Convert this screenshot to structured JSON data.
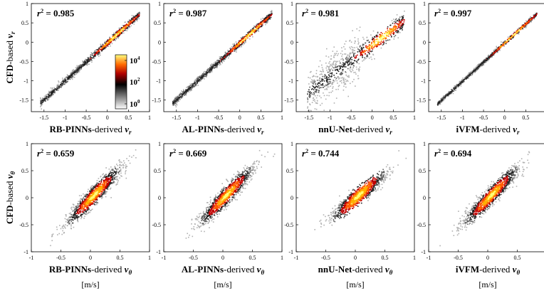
{
  "figure": {
    "colorbar": {
      "ticks": [
        "10^4",
        "10^2",
        "10^0"
      ]
    },
    "rows": [
      {
        "ylabel_bold": "CFD",
        "ylabel_rest": "-based ",
        "ylabel_var": "v",
        "ylabel_sub": "r",
        "xlabel_var": "v",
        "xlabel_sub": "r",
        "x_ticks": [
          "-1.5",
          "-1",
          "-0.5",
          "0",
          "0.5",
          "1"
        ],
        "y_ticks": [
          "1",
          "0.5",
          "0",
          "-0.5",
          "-1",
          "-1.5"
        ],
        "units": ""
      },
      {
        "ylabel_bold": "CFD",
        "ylabel_rest": "-based ",
        "ylabel_var": "v",
        "ylabel_sub": "θ",
        "xlabel_var": "v",
        "xlabel_sub": "θ",
        "x_ticks": [
          "-1",
          "-0.5",
          "0",
          "0.5",
          "1"
        ],
        "y_ticks": [
          "1",
          "0.5",
          "0",
          "-0.5",
          "-1"
        ],
        "units": "[m/s]"
      }
    ],
    "columns": [
      {
        "model_bold": "RB-PINNs",
        "rest": "-derived "
      },
      {
        "model_bold": "AL-PINNs",
        "rest": "-derived "
      },
      {
        "model_bold": "nnU-Net",
        "rest": "-derived "
      },
      {
        "model_bold": "iVFM",
        "rest": "-derived "
      }
    ],
    "r2_prefix": "r",
    "r2_exp": "2"
  },
  "chart_data": [
    {
      "type": "heatmap",
      "row": 1,
      "panel": "RB-PINNs vs CFD (v_r)",
      "r2": "0.985",
      "xlim": [
        -1.8,
        1
      ],
      "ylim": [
        -1.8,
        1
      ],
      "trend": {
        "slope": 0.98,
        "intercept": 0.0,
        "spread": 0.05,
        "x_range": [
          -1.6,
          0.75
        ]
      },
      "colorbar_range": [
        1,
        10000
      ],
      "colorscale": [
        "#ffffff",
        "#000000",
        "#b00000",
        "#ff6a00",
        "#ffff80"
      ]
    },
    {
      "type": "heatmap",
      "row": 1,
      "panel": "AL-PINNs vs CFD (v_r)",
      "r2": "0.987",
      "xlim": [
        -1.8,
        1
      ],
      "ylim": [
        -1.8,
        1
      ],
      "trend": {
        "slope": 0.98,
        "intercept": 0.0,
        "spread": 0.05,
        "x_range": [
          -1.6,
          0.75
        ]
      }
    },
    {
      "type": "heatmap",
      "row": 1,
      "panel": "nnU-Net vs CFD (v_r)",
      "r2": "0.981",
      "xlim": [
        -1.8,
        1
      ],
      "ylim": [
        -1.8,
        1
      ],
      "trend": {
        "slope": 0.82,
        "intercept": -0.05,
        "spread": 0.12,
        "x_range": [
          -1.55,
          0.75
        ]
      }
    },
    {
      "type": "heatmap",
      "row": 1,
      "panel": "iVFM vs CFD (v_r)",
      "r2": "0.997",
      "xlim": [
        -1.8,
        1
      ],
      "ylim": [
        -1.8,
        1
      ],
      "trend": {
        "slope": 0.99,
        "intercept": 0.0,
        "spread": 0.03,
        "x_range": [
          -1.6,
          0.75
        ]
      }
    },
    {
      "type": "heatmap",
      "row": 2,
      "panel": "RB-PINNs vs CFD (v_θ)",
      "r2": "0.659",
      "xlim": [
        -1,
        1
      ],
      "ylim": [
        -1,
        1
      ],
      "trend": {
        "slope": 0.9,
        "intercept": 0.0,
        "spread": 0.18,
        "x_range": [
          -0.45,
          0.65
        ]
      }
    },
    {
      "type": "heatmap",
      "row": 2,
      "panel": "AL-PINNs vs CFD (v_θ)",
      "r2": "0.669",
      "xlim": [
        -1,
        1
      ],
      "ylim": [
        -1,
        1
      ],
      "trend": {
        "slope": 0.9,
        "intercept": 0.0,
        "spread": 0.18,
        "x_range": [
          -0.45,
          0.65
        ]
      }
    },
    {
      "type": "heatmap",
      "row": 2,
      "panel": "nnU-Net vs CFD (v_θ)",
      "r2": "0.744",
      "xlim": [
        -1,
        1
      ],
      "ylim": [
        -1,
        1
      ],
      "trend": {
        "slope": 0.75,
        "intercept": 0.0,
        "spread": 0.12,
        "x_range": [
          -0.4,
          0.45
        ]
      }
    },
    {
      "type": "heatmap",
      "row": 2,
      "panel": "iVFM vs CFD (v_θ)",
      "r2": "0.694",
      "xlim": [
        -1,
        1
      ],
      "ylim": [
        -1,
        1
      ],
      "trend": {
        "slope": 0.9,
        "intercept": 0.0,
        "spread": 0.18,
        "x_range": [
          -0.45,
          0.65
        ]
      }
    }
  ]
}
